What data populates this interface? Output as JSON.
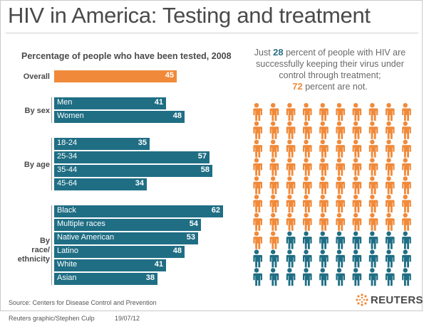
{
  "title": "HIV in America: Testing and treatment",
  "colors": {
    "orange": "#f08a3a",
    "teal": "#1f6e84",
    "text": "#4a4a4a"
  },
  "chart_data": [
    {
      "type": "bar",
      "title": "Percentage of people who have been tested, 2008",
      "orientation": "horizontal",
      "xlim": [
        0,
        65
      ],
      "groups": [
        {
          "label": "Overall",
          "items": [
            {
              "label": "",
              "value": 45,
              "highlight": true
            }
          ]
        },
        {
          "label": "By sex",
          "items": [
            {
              "label": "Men",
              "value": 41
            },
            {
              "label": "Women",
              "value": 48
            }
          ]
        },
        {
          "label": "By age",
          "items": [
            {
              "label": "18-24",
              "value": 35
            },
            {
              "label": "25-34",
              "value": 57
            },
            {
              "label": "35-44",
              "value": 58
            },
            {
              "label": "45-64",
              "value": 34
            }
          ]
        },
        {
          "label": "By race/ ethnicity",
          "items": [
            {
              "label": "Black",
              "value": 62
            },
            {
              "label": "Multiple races",
              "value": 54
            },
            {
              "label": "Native American",
              "value": 53
            },
            {
              "label": "Latino",
              "value": 48
            },
            {
              "label": "White",
              "value": 41
            },
            {
              "label": "Asian",
              "value": 38
            }
          ]
        }
      ]
    },
    {
      "type": "pictogram",
      "total": 100,
      "columns": 10,
      "segments": [
        {
          "label": "not successfully treated",
          "value": 72,
          "color": "#f08a3a"
        },
        {
          "label": "successfully treated",
          "value": 28,
          "color": "#1f6e84"
        }
      ]
    }
  ],
  "intro": {
    "pre": "Just ",
    "treated_pct": "28",
    "mid": " percent of people with HIV are successfully keeping their virus under control through treatment;",
    "untreated_pct": "72",
    "post": " percent are not."
  },
  "source": "Source:  Centers for Disease Control and Prevention",
  "credit": "Reuters graphic/Stephen Culp",
  "date": "19/07/12",
  "logo_text": "REUTERS"
}
